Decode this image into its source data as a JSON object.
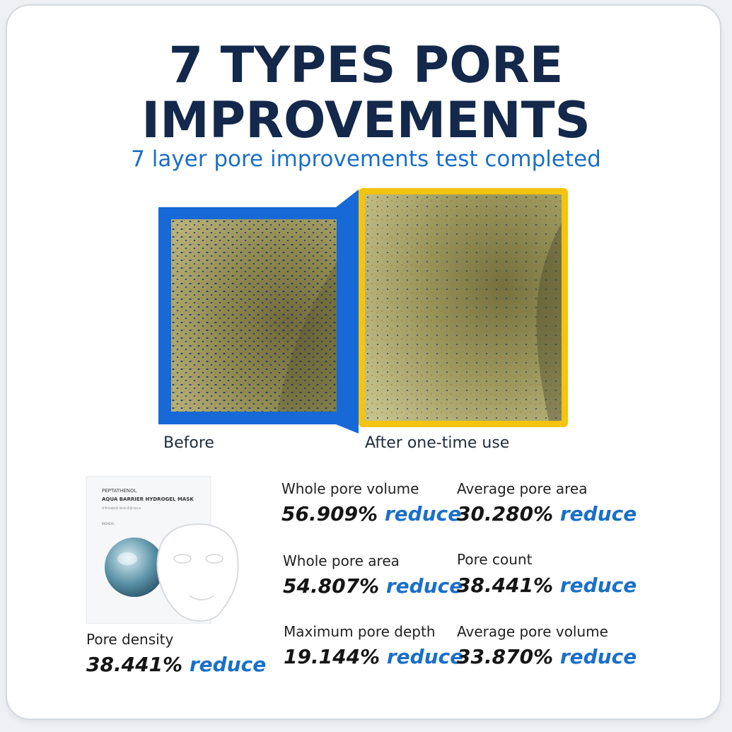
{
  "title_line1": "7 TYPES PORE",
  "title_line2": "IMPROVEMENTS",
  "subtitle": "7 layer pore improvements test completed",
  "captions": {
    "before": "Before",
    "after": "After one-time use"
  },
  "product": {
    "brand": "PEPTATHENOL",
    "name": "AQUA BARRIER HYDROGEL MASK",
    "fine_print_line1": "아쿠아 배리어 하이드로겔 마스크",
    "maker": "BIOHEAL"
  },
  "stats": [
    {
      "label": "Pore density",
      "value": "38.441%",
      "unit": "reduce"
    },
    {
      "label": "Whole pore volume",
      "value": "56.909%",
      "unit": "reduce"
    },
    {
      "label": "Average pore area",
      "value": "30.280%",
      "unit": "reduce"
    },
    {
      "label": "Whole pore area",
      "value": "54.807%",
      "unit": "reduce"
    },
    {
      "label": "Pore count",
      "value": "38.441%",
      "unit": "reduce"
    },
    {
      "label": "Maximum pore depth",
      "value": "19.144%",
      "unit": "reduce"
    },
    {
      "label": "Average pore volume",
      "value": "33.870%",
      "unit": "reduce"
    }
  ],
  "colors": {
    "title": "#13284a",
    "accent_blue": "#1a6fc8",
    "before_frame": "#1669d6",
    "after_frame": "#f4c40e"
  }
}
